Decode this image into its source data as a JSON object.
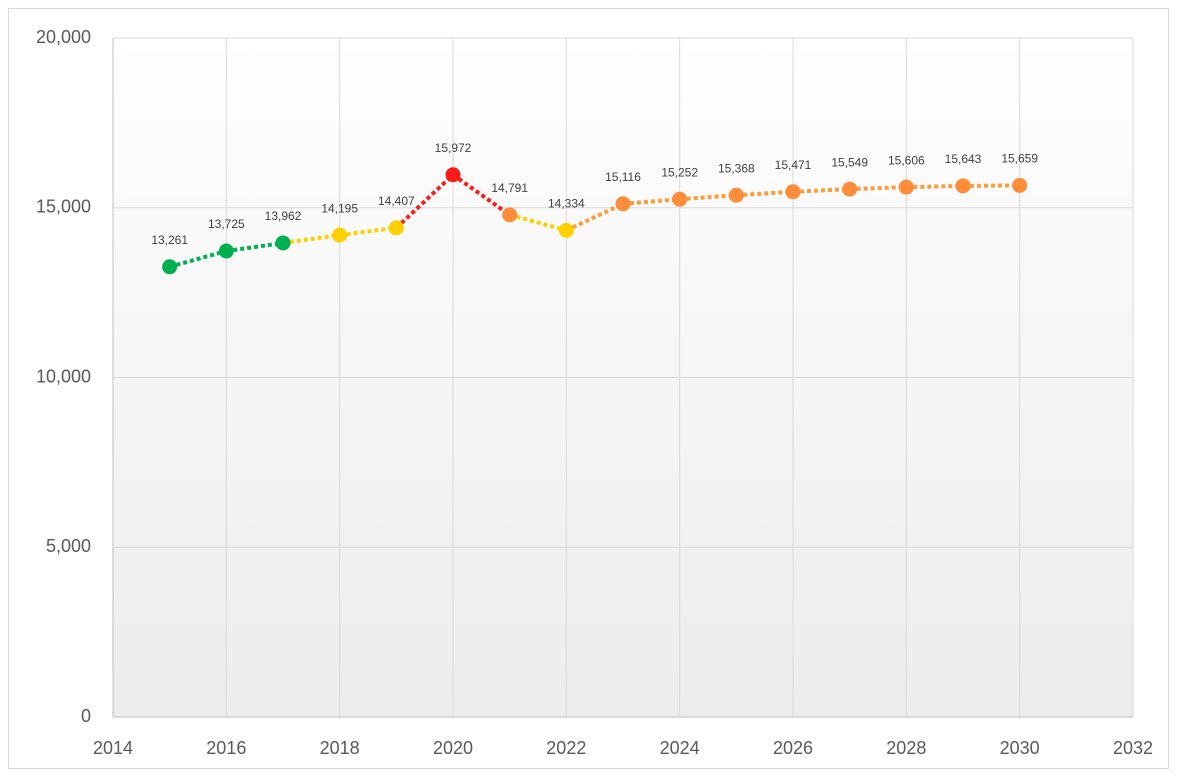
{
  "chart_data": {
    "type": "line",
    "x": [
      2015,
      2016,
      2017,
      2018,
      2019,
      2020,
      2021,
      2022,
      2023,
      2024,
      2025,
      2026,
      2027,
      2028,
      2029,
      2030
    ],
    "values": [
      13261,
      13725,
      13962,
      14195,
      14407,
      15972,
      14791,
      14334,
      15116,
      15252,
      15368,
      15471,
      15549,
      15606,
      15643,
      15659
    ],
    "value_labels": [
      "13,261",
      "13,725",
      "13,962",
      "14,195",
      "14,407",
      "15,972",
      "14,791",
      "14,334",
      "15,116",
      "15,252",
      "15,368",
      "15,471",
      "15,549",
      "15,606",
      "15,643",
      "15,659"
    ],
    "point_colors": [
      "#00b050",
      "#00b050",
      "#00b050",
      "#ffd000",
      "#ffd000",
      "#ff1a1a",
      "#ff8c3a",
      "#ffd000",
      "#ff8c3a",
      "#ff8c3a",
      "#ff8c3a",
      "#ff8c3a",
      "#ff8c3a",
      "#ff8c3a",
      "#ff8c3a",
      "#ff8c3a"
    ],
    "segment_colors": [
      "#00b050",
      "#00b050",
      "#ffd000",
      "#ffd000",
      "#ff1a1a",
      "#ff1a1a",
      "#ffd000",
      "#ff9b3a",
      "#ff9b3a",
      "#ff9b3a",
      "#ff9b3a",
      "#ff9b3a",
      "#ff9b3a",
      "#ff9b3a",
      "#ff9b3a"
    ],
    "line_style": "dotted",
    "xlim": [
      2014,
      2032
    ],
    "xticks": [
      2014,
      2016,
      2018,
      2020,
      2022,
      2024,
      2026,
      2028,
      2030,
      2032
    ],
    "ylim": [
      0,
      20000
    ],
    "yticks": [
      0,
      {
        "value": 5000,
        "label": "5,000"
      },
      {
        "value": 10000,
        "label": "10,000"
      },
      {
        "value": 15000,
        "label": "15,000"
      },
      {
        "value": 20000,
        "label": "20,000"
      }
    ],
    "grid": true
  }
}
